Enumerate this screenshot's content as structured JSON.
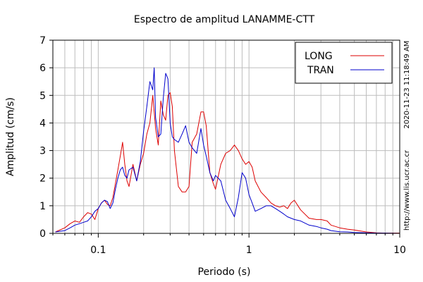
{
  "chart_data": {
    "type": "line",
    "title": "Espectro de amplitud LANAMME-CTT",
    "xlabel": "Periodo (s)",
    "ylabel": "Amplitud (cm/s)",
    "x_scale": "log",
    "xlim": [
      0.05,
      10
    ],
    "ylim": [
      0,
      7
    ],
    "x_ticks": [
      0.1,
      1,
      10
    ],
    "x_tick_labels": [
      "0.1",
      "1",
      "10"
    ],
    "y_ticks": [
      0,
      1,
      2,
      3,
      4,
      5,
      6,
      7
    ],
    "y_tick_labels": [
      "0",
      "1",
      "2",
      "3",
      "4",
      "5",
      "6",
      "7"
    ],
    "grid": true,
    "legend_position": "top-right",
    "side_text_date": "2020-11-23 11:18:49 AM",
    "side_text_url": "http://www.lis.ucr.ac.cr",
    "series": [
      {
        "name": "LONG",
        "color": "#dd0000",
        "x": [
          0.052,
          0.06,
          0.065,
          0.07,
          0.075,
          0.08,
          0.085,
          0.09,
          0.095,
          0.1,
          0.105,
          0.11,
          0.115,
          0.12,
          0.125,
          0.13,
          0.135,
          0.14,
          0.145,
          0.15,
          0.155,
          0.16,
          0.17,
          0.18,
          0.19,
          0.2,
          0.21,
          0.22,
          0.23,
          0.24,
          0.25,
          0.26,
          0.27,
          0.28,
          0.29,
          0.3,
          0.31,
          0.32,
          0.34,
          0.36,
          0.38,
          0.4,
          0.42,
          0.45,
          0.48,
          0.5,
          0.52,
          0.55,
          0.58,
          0.6,
          0.65,
          0.7,
          0.75,
          0.8,
          0.85,
          0.9,
          0.95,
          1.0,
          1.05,
          1.1,
          1.2,
          1.3,
          1.4,
          1.5,
          1.6,
          1.7,
          1.8,
          1.9,
          2.0,
          2.2,
          2.5,
          2.8,
          3.0,
          3.3,
          3.5,
          4.0,
          4.5,
          5.0,
          6.0,
          7.0,
          8.0,
          10.0
        ],
        "y": [
          0.05,
          0.2,
          0.35,
          0.45,
          0.4,
          0.6,
          0.75,
          0.7,
          0.5,
          0.9,
          1.1,
          1.2,
          1.05,
          1.0,
          1.3,
          1.8,
          2.3,
          2.8,
          3.3,
          2.5,
          1.9,
          1.7,
          2.5,
          1.9,
          2.5,
          2.9,
          3.6,
          4.0,
          5.0,
          3.8,
          3.2,
          4.8,
          4.3,
          4.1,
          5.0,
          5.1,
          4.6,
          3.0,
          1.7,
          1.5,
          1.5,
          1.7,
          3.3,
          3.6,
          4.4,
          4.4,
          3.9,
          2.2,
          1.8,
          1.6,
          2.5,
          2.9,
          3.0,
          3.2,
          3.0,
          2.7,
          2.5,
          2.6,
          2.4,
          1.9,
          1.5,
          1.3,
          1.1,
          1.0,
          0.95,
          1.0,
          0.9,
          1.1,
          1.2,
          0.85,
          0.55,
          0.5,
          0.5,
          0.45,
          0.3,
          0.2,
          0.15,
          0.12,
          0.05,
          0.02,
          0.01,
          0.01
        ]
      },
      {
        "name": "TRAN",
        "color": "#0000cc",
        "x": [
          0.052,
          0.06,
          0.065,
          0.07,
          0.075,
          0.08,
          0.085,
          0.09,
          0.095,
          0.1,
          0.105,
          0.11,
          0.115,
          0.12,
          0.125,
          0.13,
          0.135,
          0.14,
          0.145,
          0.15,
          0.155,
          0.16,
          0.17,
          0.18,
          0.19,
          0.2,
          0.21,
          0.22,
          0.23,
          0.235,
          0.24,
          0.25,
          0.26,
          0.27,
          0.28,
          0.29,
          0.3,
          0.31,
          0.32,
          0.34,
          0.36,
          0.38,
          0.4,
          0.42,
          0.45,
          0.48,
          0.5,
          0.52,
          0.55,
          0.58,
          0.6,
          0.65,
          0.7,
          0.75,
          0.8,
          0.85,
          0.9,
          0.95,
          1.0,
          1.05,
          1.1,
          1.2,
          1.3,
          1.4,
          1.5,
          1.6,
          1.7,
          1.8,
          1.9,
          2.0,
          2.2,
          2.5,
          2.8,
          3.0,
          3.3,
          3.5,
          4.0,
          4.5,
          5.0,
          6.0,
          7.0,
          8.0,
          10.0
        ],
        "y": [
          0.05,
          0.1,
          0.2,
          0.3,
          0.35,
          0.4,
          0.45,
          0.6,
          0.8,
          0.9,
          1.1,
          1.2,
          1.15,
          0.9,
          1.1,
          1.6,
          2.0,
          2.3,
          2.4,
          2.1,
          2.0,
          2.3,
          2.4,
          1.9,
          2.6,
          3.7,
          4.6,
          5.5,
          5.2,
          6.0,
          4.2,
          3.5,
          3.6,
          4.9,
          5.8,
          5.6,
          4.0,
          3.5,
          3.4,
          3.3,
          3.6,
          3.9,
          3.3,
          3.1,
          2.9,
          3.8,
          3.2,
          2.8,
          2.2,
          1.9,
          2.1,
          1.9,
          1.2,
          0.9,
          0.6,
          1.3,
          2.2,
          2.0,
          1.4,
          1.1,
          0.8,
          0.9,
          1.0,
          1.0,
          0.9,
          0.8,
          0.7,
          0.6,
          0.55,
          0.5,
          0.45,
          0.3,
          0.25,
          0.2,
          0.15,
          0.1,
          0.06,
          0.05,
          0.03,
          0.02,
          0.01,
          0.01,
          0.0
        ]
      }
    ]
  }
}
